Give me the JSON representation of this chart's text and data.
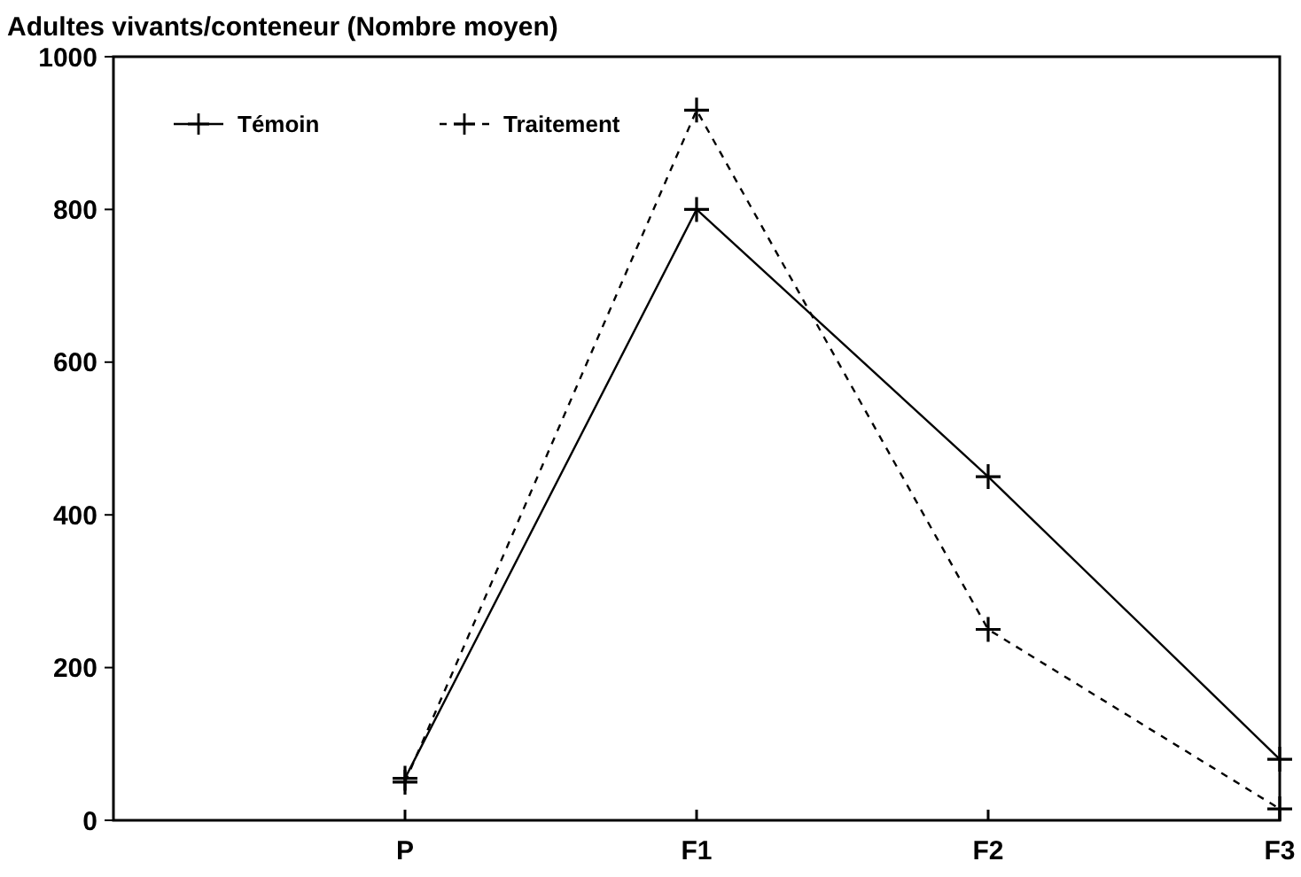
{
  "chart_data": {
    "type": "line",
    "title": "Adultes vivants/conteneur (Nombre moyen)",
    "categories": [
      null,
      "P",
      "F1",
      "F2",
      "F3"
    ],
    "series": [
      {
        "name": "Témoin",
        "color": "#000000",
        "line_style": "solid",
        "values": [
          null,
          55,
          800,
          450,
          80
        ]
      },
      {
        "name": "Traitement",
        "color": "#000000",
        "line_style": "dashed",
        "values": [
          null,
          50,
          930,
          250,
          15
        ]
      }
    ],
    "ylim": [
      0,
      1000
    ],
    "yticks": [
      0,
      200,
      400,
      600,
      800,
      1000
    ],
    "grid": false,
    "legend": "top left",
    "marker": "cross"
  }
}
